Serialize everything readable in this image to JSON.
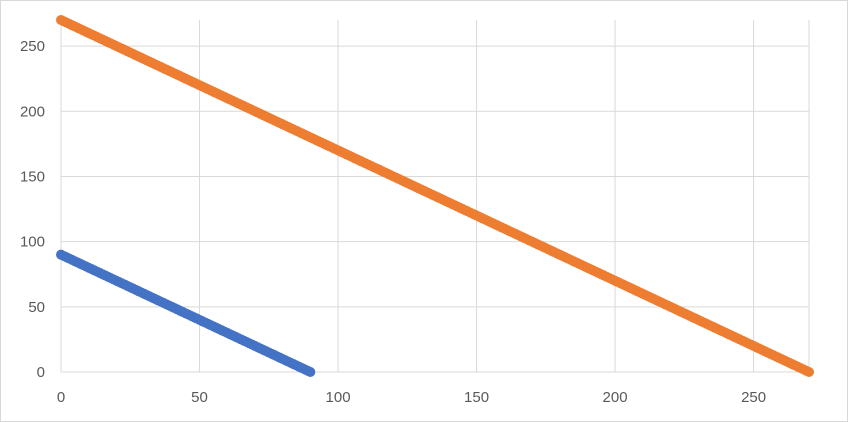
{
  "chart_data": {
    "type": "scatter",
    "title": "",
    "xlabel": "",
    "ylabel": "",
    "xlim": [
      0,
      270
    ],
    "ylim": [
      0,
      270
    ],
    "x_ticks": [
      0,
      50,
      100,
      150,
      200,
      250
    ],
    "y_ticks": [
      0,
      50,
      100,
      150,
      200,
      250
    ],
    "x_tick_labels": [
      "0",
      "50",
      "100",
      "150",
      "200",
      "250"
    ],
    "y_tick_labels": [
      "0",
      "50",
      "100",
      "150",
      "200",
      "250"
    ],
    "grid": true,
    "legend": "none",
    "series": [
      {
        "color": "#4472c4",
        "x_start": 0,
        "x_end": 90,
        "x_step": 1,
        "relation": "y = 90 - x"
      },
      {
        "color": "#ed7d31",
        "x_start": 0,
        "x_end": 270,
        "x_step": 1,
        "relation": "y = 270 - x"
      }
    ]
  }
}
